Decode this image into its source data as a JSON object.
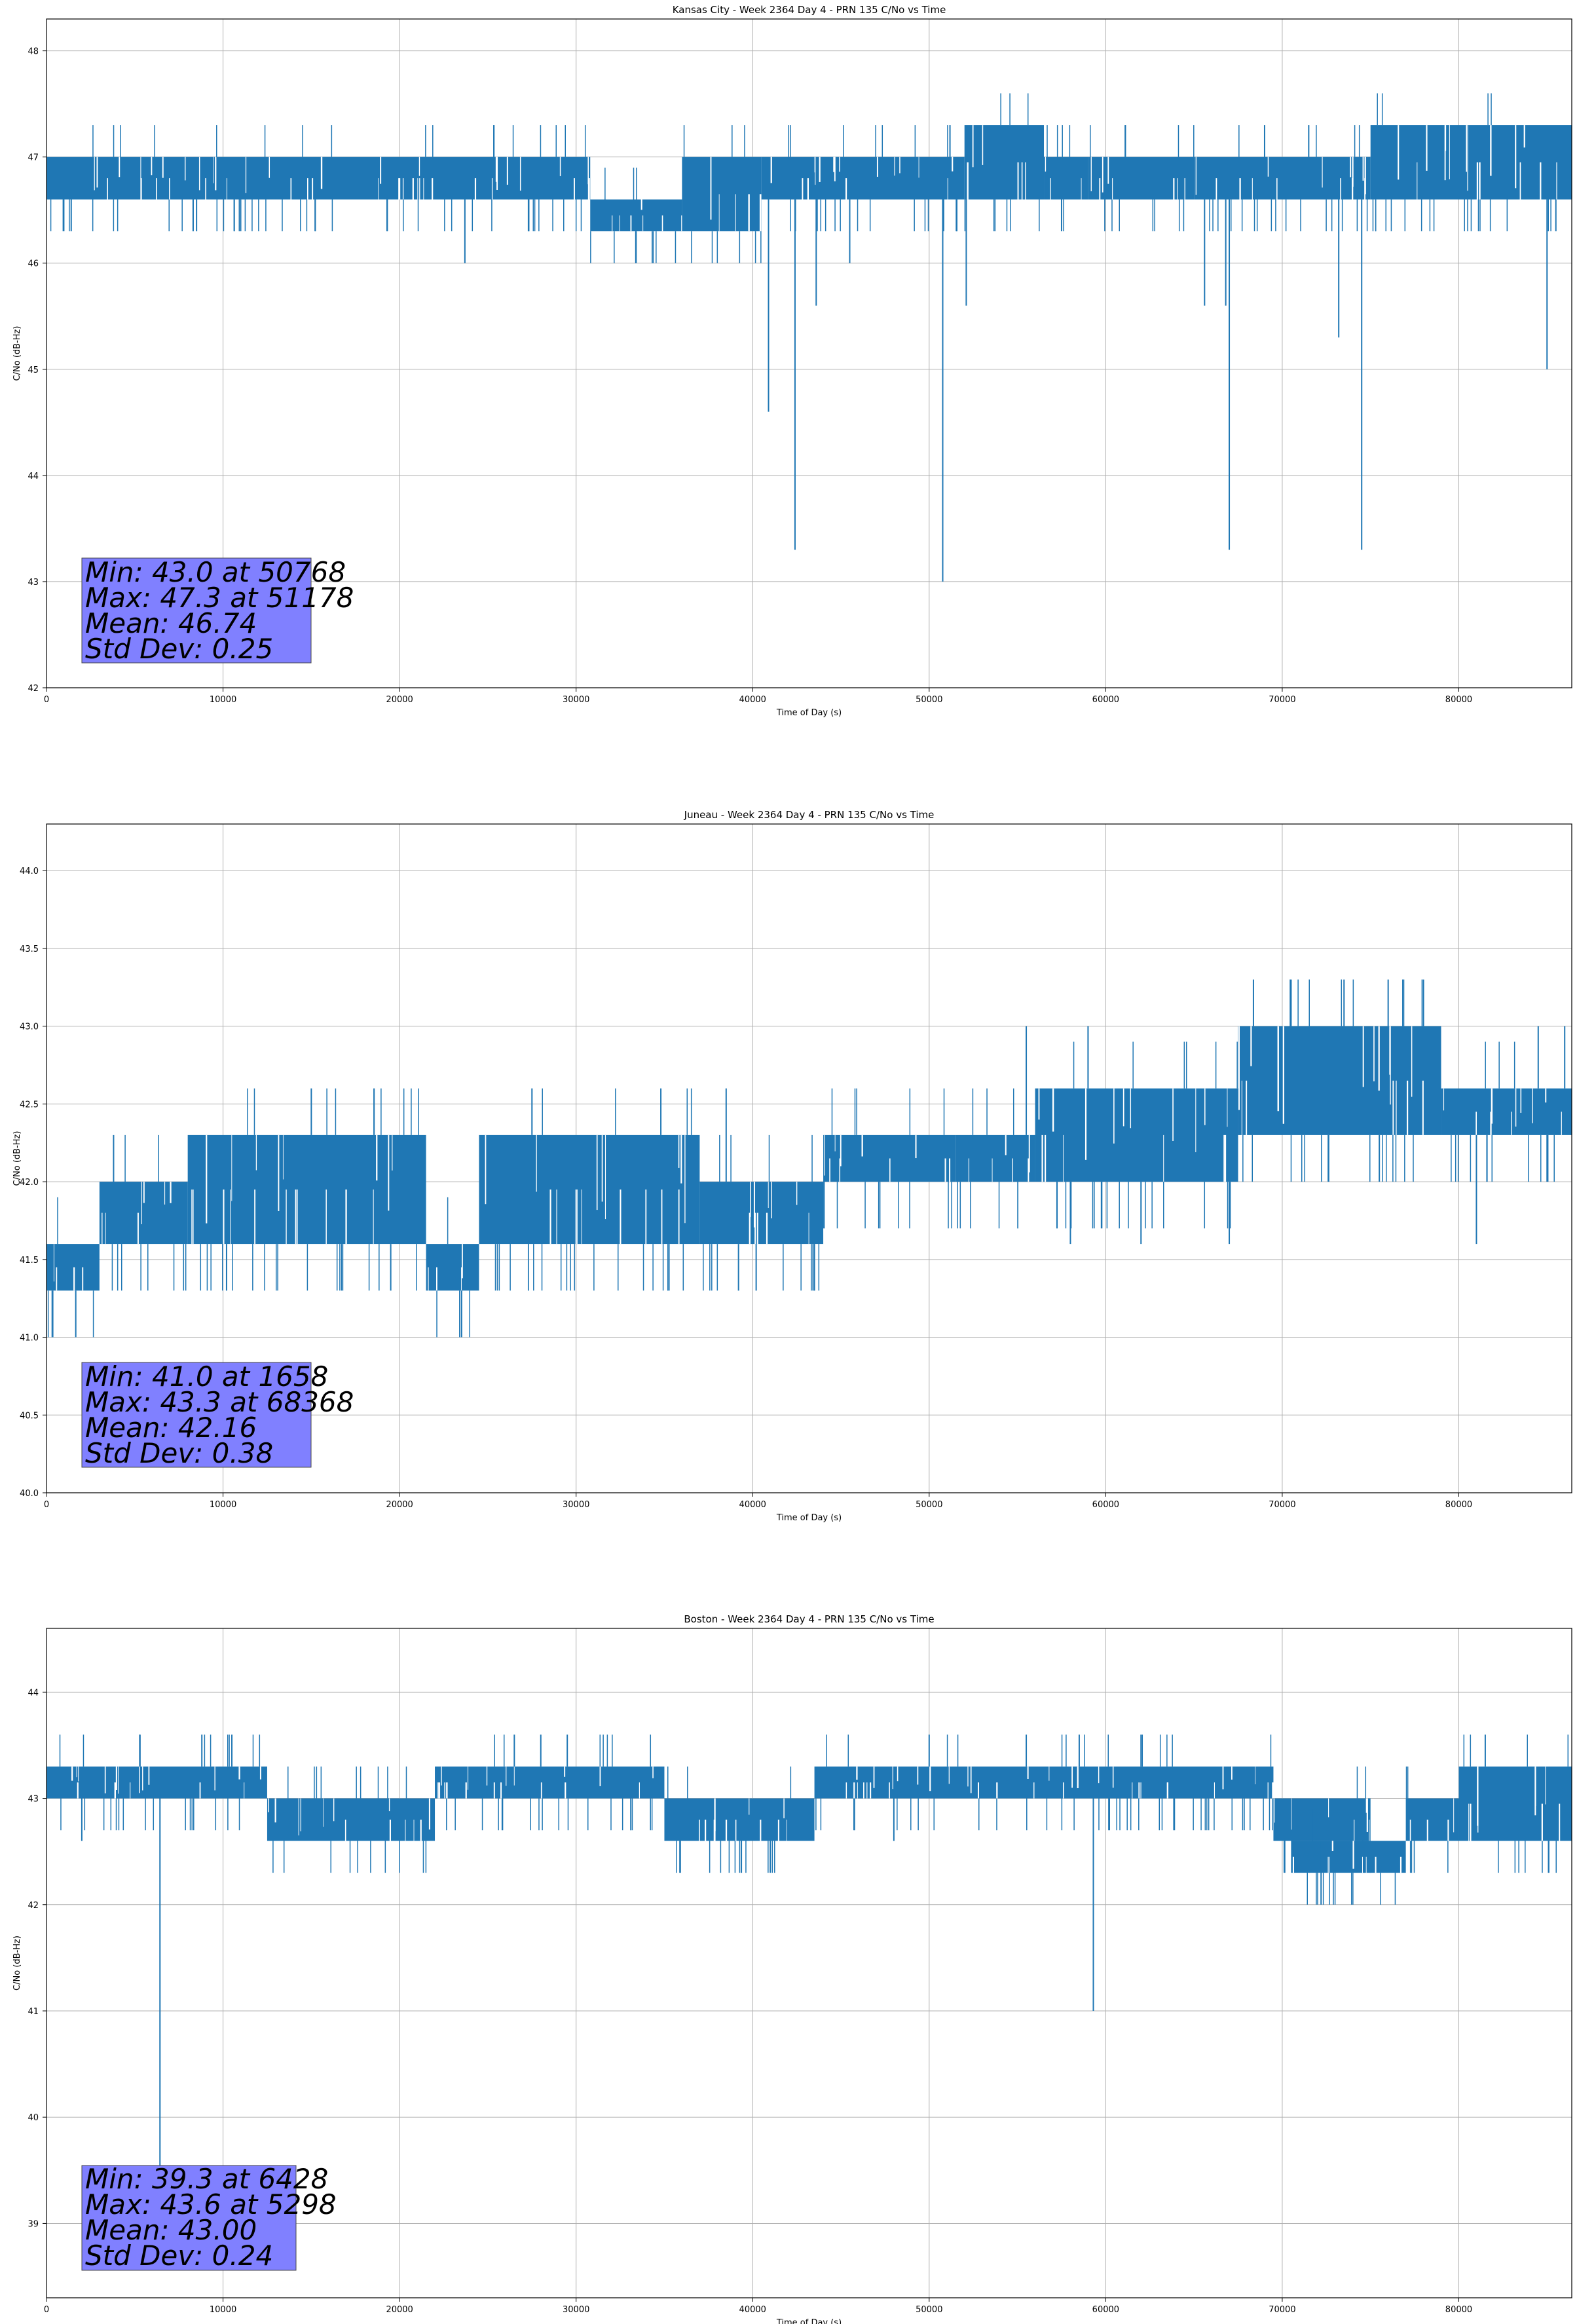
{
  "chart_data": [
    {
      "type": "line",
      "title": "Kansas City - Week 2364 Day 4 - PRN 135 C/No vs Time",
      "xlabel": "Time of Day (s)",
      "ylabel": "C/No (dB-Hz)",
      "xlim": [
        0,
        86400
      ],
      "ylim": [
        42,
        48.3
      ],
      "xticks": [
        0,
        10000,
        20000,
        30000,
        40000,
        50000,
        60000,
        70000,
        80000
      ],
      "yticks": [
        42,
        43,
        44,
        45,
        46,
        47,
        48
      ],
      "ytick_labels": [
        "42",
        "43",
        "44",
        "45",
        "46",
        "47",
        "48"
      ],
      "grid": true,
      "color": "#1f77b4",
      "stats_box_color": "#8080ff",
      "stats": [
        "Min: 43.0 at 50768",
        "Max: 47.3 at 51178",
        "Mean: 46.74",
        "Std Dev: 0.25"
      ],
      "segments": [
        {
          "x0": 0,
          "x1": 30800,
          "hi": 47.0,
          "lo": 46.6
        },
        {
          "x0": 30800,
          "x1": 36000,
          "hi": 46.6,
          "lo": 46.3
        },
        {
          "x0": 36000,
          "x1": 40500,
          "hi": 47.0,
          "lo": 46.3
        },
        {
          "x0": 40500,
          "x1": 52000,
          "hi": 47.0,
          "lo": 46.6
        },
        {
          "x0": 52000,
          "x1": 56500,
          "hi": 47.3,
          "lo": 46.6
        },
        {
          "x0": 56500,
          "x1": 59000,
          "hi": 47.0,
          "lo": 46.6
        },
        {
          "x0": 59000,
          "x1": 65000,
          "hi": 47.0,
          "lo": 46.6
        },
        {
          "x0": 65000,
          "x1": 75000,
          "hi": 47.0,
          "lo": 46.6
        },
        {
          "x0": 75000,
          "x1": 86400,
          "hi": 47.3,
          "lo": 46.6
        }
      ],
      "spikes_low": [
        {
          "x": 1400,
          "y": 46.3
        },
        {
          "x": 8500,
          "y": 46.3
        },
        {
          "x": 11000,
          "y": 46.3
        },
        {
          "x": 23700,
          "y": 46.0
        },
        {
          "x": 33400,
          "y": 46.0
        },
        {
          "x": 40900,
          "y": 44.6
        },
        {
          "x": 42400,
          "y": 43.3
        },
        {
          "x": 43600,
          "y": 45.6
        },
        {
          "x": 45500,
          "y": 46.0
        },
        {
          "x": 50768,
          "y": 43.0
        },
        {
          "x": 52100,
          "y": 45.6
        },
        {
          "x": 57500,
          "y": 46.3
        },
        {
          "x": 65600,
          "y": 45.6
        },
        {
          "x": 66800,
          "y": 45.6
        },
        {
          "x": 67000,
          "y": 43.3
        },
        {
          "x": 73200,
          "y": 45.3
        },
        {
          "x": 74500,
          "y": 43.3
        },
        {
          "x": 85000,
          "y": 45.0
        },
        {
          "x": 85500,
          "y": 46.3
        }
      ],
      "spikes_high": [
        {
          "x": 51178,
          "y": 47.3
        },
        {
          "x": 53500,
          "y": 47.3
        },
        {
          "x": 55000,
          "y": 47.3
        },
        {
          "x": 69000,
          "y": 47.3
        },
        {
          "x": 71500,
          "y": 47.3
        },
        {
          "x": 77000,
          "y": 47.3
        }
      ]
    },
    {
      "type": "line",
      "title": "Juneau - Week 2364 Day 4 - PRN 135 C/No vs Time",
      "xlabel": "Time of Day (s)",
      "ylabel": "C/No (dB-Hz)",
      "xlim": [
        0,
        86400
      ],
      "ylim": [
        40,
        44.3
      ],
      "xticks": [
        0,
        10000,
        20000,
        30000,
        40000,
        50000,
        60000,
        70000,
        80000
      ],
      "yticks": [
        40,
        40.5,
        41,
        41.5,
        42,
        42.5,
        43,
        43.5,
        44
      ],
      "ytick_labels": [
        "40.0",
        "40.5",
        "41.0",
        "41.5",
        "42.0",
        "42.5",
        "43.0",
        "43.5",
        "44.0"
      ],
      "grid": true,
      "color": "#1f77b4",
      "stats_box_color": "#8080ff",
      "stats": [
        "Min: 41.0 at 1658",
        "Max: 43.3 at 68368",
        "Mean: 42.16",
        "Std Dev: 0.38"
      ],
      "segments": [
        {
          "x0": 0,
          "x1": 3000,
          "hi": 41.6,
          "lo": 41.3
        },
        {
          "x0": 3000,
          "x1": 8000,
          "hi": 42.0,
          "lo": 41.6
        },
        {
          "x0": 8000,
          "x1": 21500,
          "hi": 42.3,
          "lo": 41.6
        },
        {
          "x0": 21500,
          "x1": 24500,
          "hi": 41.6,
          "lo": 41.3
        },
        {
          "x0": 24500,
          "x1": 37000,
          "hi": 42.3,
          "lo": 41.6
        },
        {
          "x0": 37000,
          "x1": 44000,
          "hi": 42.0,
          "lo": 41.6
        },
        {
          "x0": 44000,
          "x1": 51500,
          "hi": 42.3,
          "lo": 42.0
        },
        {
          "x0": 51500,
          "x1": 56000,
          "hi": 42.3,
          "lo": 42.0
        },
        {
          "x0": 56000,
          "x1": 67500,
          "hi": 42.6,
          "lo": 42.0
        },
        {
          "x0": 67500,
          "x1": 79000,
          "hi": 43.0,
          "lo": 42.3
        },
        {
          "x0": 79000,
          "x1": 86400,
          "hi": 42.6,
          "lo": 42.3
        }
      ],
      "spikes_low": [
        {
          "x": 1658,
          "y": 41.0
        },
        {
          "x": 10200,
          "y": 41.3
        },
        {
          "x": 19500,
          "y": 41.3
        },
        {
          "x": 39200,
          "y": 41.3
        },
        {
          "x": 40200,
          "y": 41.3
        },
        {
          "x": 43500,
          "y": 41.3
        },
        {
          "x": 58000,
          "y": 41.6
        },
        {
          "x": 62000,
          "y": 41.6
        },
        {
          "x": 67000,
          "y": 41.6
        },
        {
          "x": 81000,
          "y": 41.6
        },
        {
          "x": 75500,
          "y": 42.0
        },
        {
          "x": 85000,
          "y": 42.0
        }
      ],
      "spikes_high": [
        {
          "x": 3800,
          "y": 42.3
        },
        {
          "x": 15000,
          "y": 42.6
        },
        {
          "x": 27500,
          "y": 42.6
        },
        {
          "x": 34800,
          "y": 42.6
        },
        {
          "x": 38500,
          "y": 42.6
        },
        {
          "x": 55500,
          "y": 43.0
        },
        {
          "x": 59000,
          "y": 43.0
        },
        {
          "x": 68368,
          "y": 43.3
        },
        {
          "x": 70500,
          "y": 43.3
        },
        {
          "x": 73500,
          "y": 43.3
        },
        {
          "x": 76000,
          "y": 43.3
        },
        {
          "x": 78000,
          "y": 43.3
        },
        {
          "x": 84500,
          "y": 43.0
        },
        {
          "x": 86000,
          "y": 43.0
        }
      ]
    },
    {
      "type": "line",
      "title": "Boston - Week 2364 Day 4 - PRN 135 C/No vs Time",
      "xlabel": "Time of Day (s)",
      "ylabel": "C/No (dB-Hz)",
      "xlim": [
        0,
        86400
      ],
      "ylim": [
        38.3,
        44.6
      ],
      "xticks": [
        0,
        10000,
        20000,
        30000,
        40000,
        50000,
        60000,
        70000,
        80000
      ],
      "yticks": [
        39,
        40,
        41,
        42,
        43,
        44
      ],
      "ytick_labels": [
        "39",
        "40",
        "41",
        "42",
        "43",
        "44"
      ],
      "grid": true,
      "color": "#1f77b4",
      "stats_box_color": "#8080ff",
      "stats": [
        "Min: 39.3 at 6428",
        "Max: 43.6 at 5298",
        "Mean: 43.00",
        "Std Dev: 0.24"
      ],
      "segments": [
        {
          "x0": 0,
          "x1": 12500,
          "hi": 43.3,
          "lo": 43.0
        },
        {
          "x0": 12500,
          "x1": 22000,
          "hi": 43.0,
          "lo": 42.6
        },
        {
          "x0": 22000,
          "x1": 35000,
          "hi": 43.3,
          "lo": 43.0
        },
        {
          "x0": 35000,
          "x1": 43500,
          "hi": 43.0,
          "lo": 42.6
        },
        {
          "x0": 43500,
          "x1": 69500,
          "hi": 43.3,
          "lo": 43.0
        },
        {
          "x0": 69500,
          "x1": 75000,
          "hi": 43.0,
          "lo": 42.6
        },
        {
          "x0": 70500,
          "x1": 77000,
          "hi": 42.6,
          "lo": 42.3
        },
        {
          "x0": 77000,
          "x1": 80000,
          "hi": 43.0,
          "lo": 42.6
        },
        {
          "x0": 80000,
          "x1": 86400,
          "hi": 43.3,
          "lo": 42.6
        }
      ],
      "spikes_low": [
        {
          "x": 6428,
          "y": 39.3
        },
        {
          "x": 59300,
          "y": 41.0
        },
        {
          "x": 41000,
          "y": 42.3
        },
        {
          "x": 72200,
          "y": 42.0
        },
        {
          "x": 2000,
          "y": 42.6
        },
        {
          "x": 48000,
          "y": 42.6
        }
      ],
      "spikes_high": [
        {
          "x": 5298,
          "y": 43.6
        },
        {
          "x": 8800,
          "y": 43.6
        },
        {
          "x": 10500,
          "y": 43.6
        },
        {
          "x": 26500,
          "y": 43.6
        },
        {
          "x": 28000,
          "y": 43.6
        },
        {
          "x": 29500,
          "y": 43.6
        },
        {
          "x": 50000,
          "y": 43.6
        },
        {
          "x": 55500,
          "y": 43.6
        },
        {
          "x": 58500,
          "y": 43.6
        },
        {
          "x": 62000,
          "y": 43.6
        },
        {
          "x": 81500,
          "y": 43.6
        }
      ]
    }
  ]
}
